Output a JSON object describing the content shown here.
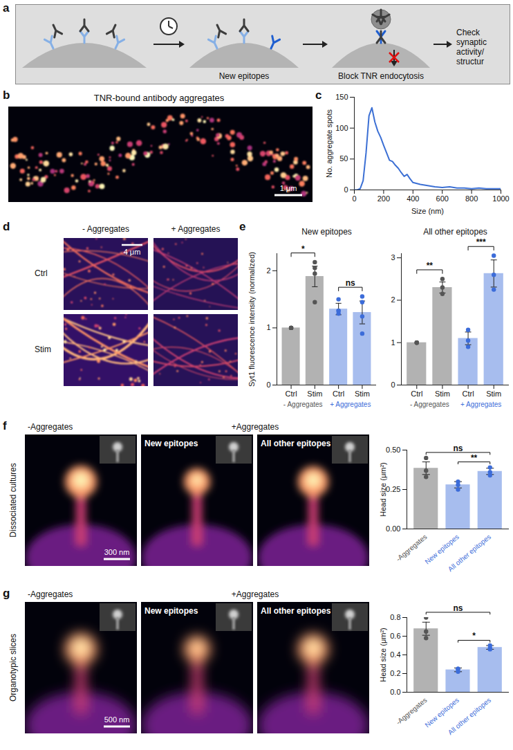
{
  "figure": {
    "panel_labels": [
      "a",
      "b",
      "c",
      "d",
      "e",
      "f",
      "g"
    ],
    "a": {
      "labels": [
        "New epitopes",
        "Block TNR endocytosis",
        "Check synaptic activity/ structur"
      ]
    },
    "b": {
      "title": "TNR-bound antibody aggregates",
      "scale_bar": "1 μm"
    },
    "d": {
      "columns": [
        "- Aggregates",
        "+ Aggregates"
      ],
      "rows": [
        "Ctrl",
        "Stim"
      ],
      "scale_bar": "4 μm"
    },
    "f": {
      "row": "Dissociated cultures",
      "images": [
        "-Aggregates",
        "New epitopes",
        "All other epitopes"
      ],
      "group": "+Aggregates",
      "scale_bar": "300 nm"
    },
    "g": {
      "row": "Organotypic slices",
      "images": [
        "-Aggregates",
        "New epitopes",
        "All other epitopes"
      ],
      "group": "+Aggregates",
      "scale_bar": "500 nm"
    }
  },
  "chart_data": [
    {
      "type": "line",
      "x": [
        0,
        20,
        40,
        60,
        80,
        100,
        120,
        140,
        160,
        180,
        200,
        220,
        240,
        260,
        280,
        300,
        320,
        340,
        360,
        380,
        400,
        450,
        500,
        550,
        600,
        650,
        700,
        750,
        800,
        850,
        900,
        950,
        1000
      ],
      "values": [
        0,
        0,
        2,
        15,
        60,
        120,
        133,
        110,
        95,
        85,
        72,
        60,
        48,
        46,
        40,
        35,
        28,
        22,
        25,
        18,
        12,
        9,
        7,
        5,
        4,
        5,
        3,
        3,
        2,
        3,
        2,
        2,
        2
      ],
      "color": "#3b6fd4",
      "x_label": "Size (nm)",
      "y_label": "No. aggregate spots",
      "xlim": [
        0,
        1000
      ],
      "xticks": [
        0,
        200,
        400,
        600,
        800,
        1000
      ],
      "ylim": [
        0,
        150
      ],
      "yticks": [
        0,
        50,
        100,
        150
      ]
    },
    {
      "type": "bar",
      "title": "New epitopes",
      "categories": [
        "Ctrl",
        "Stim",
        "Ctrl",
        "Stim"
      ],
      "values": [
        1.0,
        1.9,
        1.33,
        1.27
      ],
      "errors": [
        0,
        0.18,
        0.1,
        0.2
      ],
      "points": [
        [
          1.0,
          1.0,
          1.0,
          1.0
        ],
        [
          2.15,
          2.05,
          1.95,
          1.45
        ],
        [
          1.25,
          1.3,
          1.3,
          1.5
        ],
        [
          1.55,
          1.45,
          1.2,
          0.9
        ]
      ],
      "colors": [
        "#555555",
        "#555555",
        "#3c6cd9",
        "#3c6cd9"
      ],
      "groups": [
        {
          "label": "- Aggregates",
          "members": [
            0,
            1
          ]
        },
        {
          "label": "+ Aggregates",
          "members": [
            2,
            3
          ]
        }
      ],
      "comparisons": [
        {
          "between": [
            0,
            1
          ],
          "label": "*"
        },
        {
          "between": [
            2,
            3
          ],
          "label": "ns"
        }
      ],
      "y_label": "Syt1 fluorescence intensity (normalized)",
      "ylim": [
        0,
        2.3
      ],
      "yticks": [
        0,
        1,
        2
      ]
    },
    {
      "type": "bar",
      "title": "All other epitopes",
      "categories": [
        "Ctrl",
        "Stim",
        "Ctrl",
        "Stim"
      ],
      "values": [
        1.0,
        2.3,
        1.1,
        2.63
      ],
      "errors": [
        0,
        0.13,
        0.15,
        0.32
      ],
      "points": [
        [
          1.0,
          1.0,
          1.0
        ],
        [
          2.5,
          2.3,
          2.15
        ],
        [
          1.3,
          1.05,
          0.9
        ],
        [
          3.05,
          2.6,
          2.25
        ]
      ],
      "colors": [
        "#555555",
        "#555555",
        "#3c6cd9",
        "#3c6cd9"
      ],
      "groups": [
        {
          "label": "- Aggregates",
          "members": [
            0,
            1
          ]
        },
        {
          "label": "+ Aggregates",
          "members": [
            2,
            3
          ]
        }
      ],
      "comparisons": [
        {
          "between": [
            0,
            1
          ],
          "label": "**"
        },
        {
          "between": [
            2,
            3
          ],
          "label": "***"
        }
      ],
      "ylim": [
        0,
        3.1
      ],
      "yticks": [
        0,
        1,
        2,
        3
      ]
    },
    {
      "type": "bar",
      "categories": [
        "-Aggregates",
        "New epitopes",
        "All other epitopes"
      ],
      "values": [
        0.385,
        0.28,
        0.365
      ],
      "errors": [
        0.04,
        0.02,
        0.02
      ],
      "points": [
        [
          0.45,
          0.37,
          0.33
        ],
        [
          0.3,
          0.28,
          0.25
        ],
        [
          0.39,
          0.36,
          0.34
        ]
      ],
      "colors": [
        "#555555",
        "#3c6cd9",
        "#3c6cd9"
      ],
      "comparisons": [
        {
          "between": [
            1,
            2
          ],
          "label": "**"
        },
        {
          "between": [
            0,
            2
          ],
          "label": "ns"
        }
      ],
      "y_label": "Head size (μm²)",
      "ylim": [
        0,
        0.5
      ],
      "yticks": [
        {
          "value": 0,
          "label": "0.00"
        },
        0.25,
        {
          "value": 0.5,
          "label": "0.50"
        }
      ]
    },
    {
      "type": "bar",
      "categories": [
        "-Aggregates",
        "New epitopes",
        "All other epitopes"
      ],
      "values": [
        0.68,
        0.24,
        0.48
      ],
      "errors": [
        0.07,
        0.02,
        0.02
      ],
      "points": [
        [
          0.8,
          0.65,
          0.58
        ],
        [
          0.25,
          0.22,
          0.25
        ],
        [
          0.5,
          0.47,
          0.46
        ]
      ],
      "colors": [
        "#555555",
        "#3c6cd9",
        "#3c6cd9"
      ],
      "comparisons": [
        {
          "between": [
            1,
            2
          ],
          "label": "*"
        },
        {
          "between": [
            0,
            2
          ],
          "label": "ns"
        }
      ],
      "y_label": "Head size (μm²)",
      "ylim": [
        0,
        0.8
      ],
      "yticks": [
        {
          "value": 0,
          "label": "0.0"
        },
        0.2,
        0.4,
        0.6,
        0.8
      ]
    }
  ]
}
